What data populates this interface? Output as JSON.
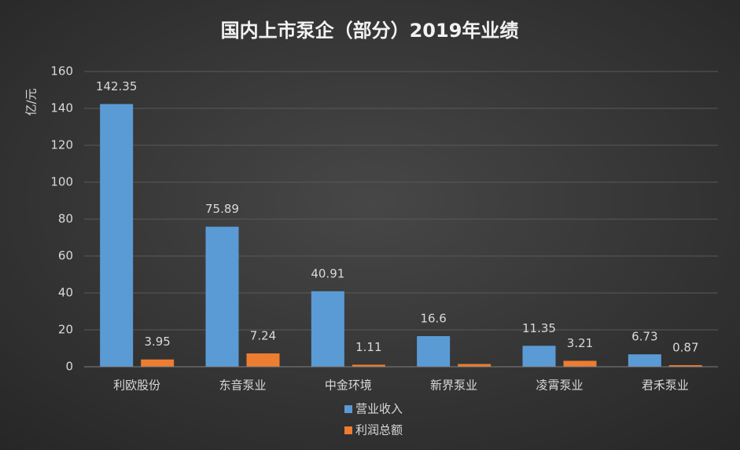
{
  "chart_data": {
    "type": "bar",
    "title": "国内上市泵企（部分）2019年业绩",
    "y_label": "亿/元",
    "categories": [
      "利欧股份",
      "东音泵业",
      "中金环境",
      "新界泵业",
      "凌霄泵业",
      "君禾泵业"
    ],
    "series": [
      {
        "name": "营业收入",
        "color": "#5b9bd5",
        "values": [
          142.35,
          75.89,
          40.91,
          16.6,
          11.35,
          6.73
        ]
      },
      {
        "name": "利润总额",
        "color": "#ed7d31",
        "values": [
          3.95,
          7.24,
          1.11,
          1.5,
          3.21,
          0.87
        ],
        "value_labels": [
          "3.95",
          "7.24",
          "1.11",
          null,
          "3.21",
          "0.87"
        ]
      }
    ],
    "ylim": [
      0,
      160
    ],
    "yticks": [
      0,
      20,
      40,
      60,
      80,
      100,
      120,
      140,
      160
    ],
    "grid": true,
    "legend": "bottom"
  }
}
